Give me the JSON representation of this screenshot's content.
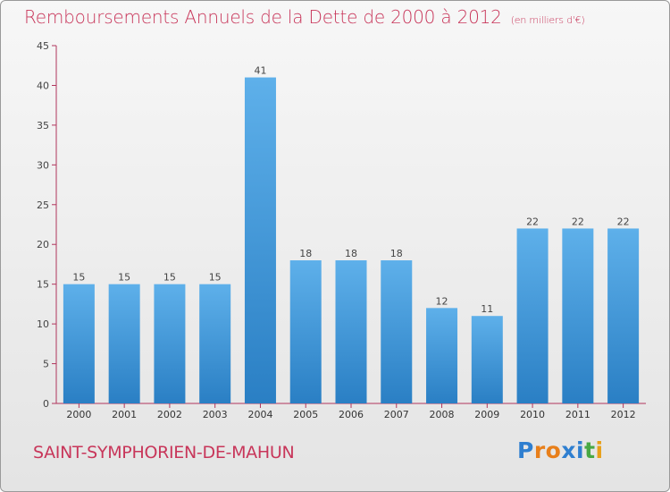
{
  "header": {
    "title": "Remboursements Annuels de la Dette de 2000 à 2012",
    "unit": "(en milliers d'€)"
  },
  "footer": {
    "commune": "SAINT-SYMPHORIEN-DE-MAHUN",
    "logo": "Proxiti"
  },
  "colors": {
    "title": "#c8365a",
    "bar_top": "#5eb0ea",
    "bar_bottom": "#2a7fc4",
    "axis": "#b0355c",
    "logo_letters": [
      "#2f7fd0",
      "#e87f1a",
      "#e87f1a",
      "#2f7fd0",
      "#2f7fd0",
      "#49a844",
      "#e8a01a"
    ]
  },
  "chart_data": {
    "type": "bar",
    "categories": [
      "2000",
      "2001",
      "2002",
      "2003",
      "2004",
      "2005",
      "2006",
      "2007",
      "2008",
      "2009",
      "2010",
      "2011",
      "2012"
    ],
    "values": [
      15,
      15,
      15,
      15,
      41,
      18,
      18,
      18,
      12,
      11,
      22,
      22,
      22
    ],
    "data_labels": [
      "15",
      "15",
      "15",
      "15",
      "41",
      "18",
      "18",
      "18",
      "12",
      "11",
      "22",
      "22",
      "22"
    ],
    "title": "Remboursements Annuels de la Dette de 2000 à 2012",
    "ylim": [
      0,
      45
    ],
    "yticks": [
      0,
      5,
      10,
      15,
      20,
      25,
      30,
      35,
      40,
      45
    ],
    "grid": false
  }
}
